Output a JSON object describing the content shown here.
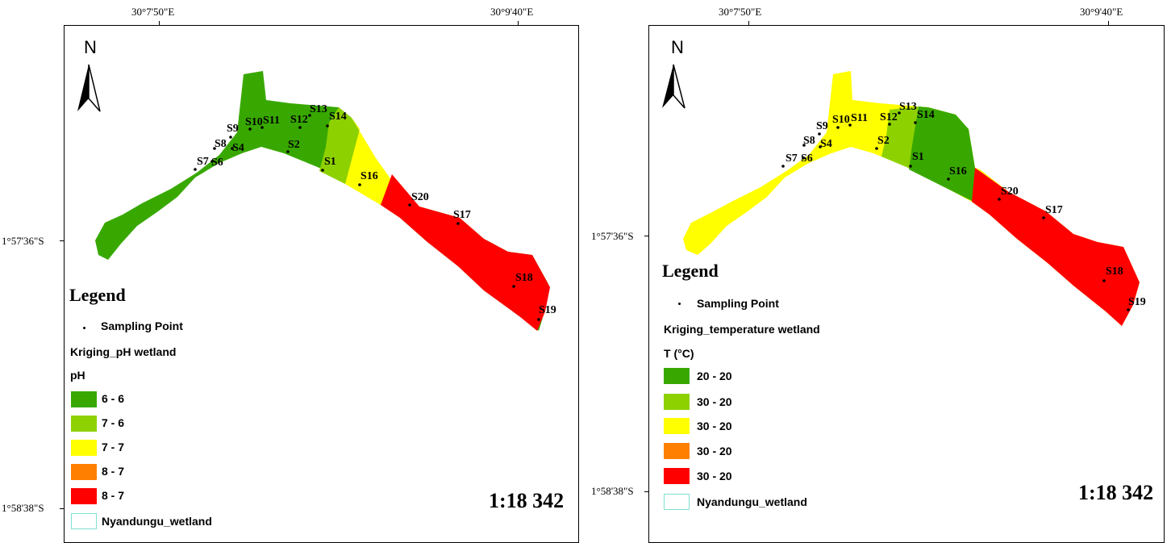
{
  "maps": [
    {
      "coords": {
        "lon_left": "30°7'50\"E",
        "lon_right": "30°9'40\"E",
        "lat_top": "1°57'36\"S",
        "lat_bottom": "1°58'38\"S"
      },
      "north_label": "N",
      "points": [
        "S1",
        "S2",
        "S4",
        "S6",
        "S7",
        "S8",
        "S9",
        "S10",
        "S11",
        "S12",
        "S13",
        "S14",
        "S16",
        "S17",
        "S18",
        "S19",
        "S20"
      ],
      "legend": {
        "title": "Legend",
        "sampling_label": "Sampling Point",
        "layer_label": "Kriging_pH wetland",
        "field_label": "pH",
        "classes": [
          {
            "label": "6 - 6",
            "color": "#38a800"
          },
          {
            "label": "7 - 6",
            "color": "#8ed100"
          },
          {
            "label": "7 - 7",
            "color": "#ffff00"
          },
          {
            "label": "8 - 7",
            "color": "#ff8000"
          },
          {
            "label": "8 - 7",
            "color": "#ff0000"
          }
        ],
        "boundary_label": "Nyandungu_wetland",
        "boundary_color": "#7fe0d4"
      },
      "scale": "1:18 342"
    },
    {
      "coords": {
        "lon_left": "30°7'50\"E",
        "lon_right": "30°9'40\"E",
        "lat_top": "1°57'36\"S",
        "lat_bottom": "1°58'38\"S"
      },
      "north_label": "N",
      "points": [
        "S1",
        "S2",
        "S4",
        "S6",
        "S7",
        "S8",
        "S9",
        "S10",
        "S11",
        "S12",
        "S13",
        "S14",
        "S16",
        "S17",
        "S18",
        "S19",
        "S20"
      ],
      "legend": {
        "title": "Legend",
        "sampling_label": "Sampling Point",
        "layer_label": "Kriging_temperature wetland",
        "field_label": "T (°C)",
        "classes": [
          {
            "label": "20 - 20",
            "color": "#38a800"
          },
          {
            "label": "30 - 20",
            "color": "#8ed100"
          },
          {
            "label": "30 - 20",
            "color": "#ffff00"
          },
          {
            "label": "30 - 20",
            "color": "#ff8000"
          },
          {
            "label": "30 - 20",
            "color": "#ff0000"
          }
        ],
        "boundary_label": "Nyandungu_wetland",
        "boundary_color": "#7fe0d4"
      },
      "scale": "1:18 342"
    }
  ]
}
